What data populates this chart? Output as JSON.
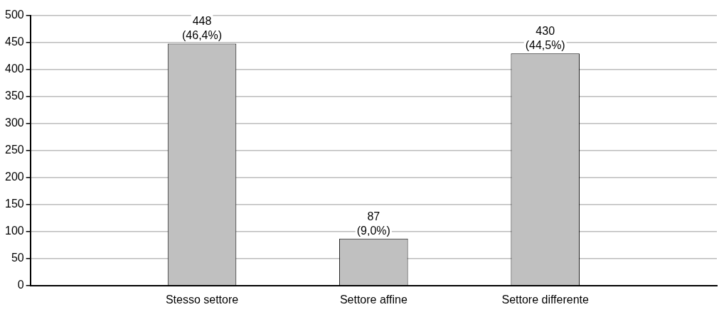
{
  "chart_data": {
    "type": "bar",
    "categories": [
      null,
      "Stesso settore",
      "Settore affine",
      "Settore differente",
      null
    ],
    "series": [
      {
        "color": "#c0c0c0",
        "values": [
          null,
          448,
          87,
          430,
          null
        ],
        "value_labels": [
          null,
          "448\n(46,4%)",
          "87\n(9,0%)",
          "430\n(44,5%)",
          null
        ]
      }
    ],
    "ylim": [
      0,
      500
    ],
    "yticks": [
      0,
      50,
      100,
      150,
      200,
      250,
      300,
      350,
      400,
      450,
      500
    ],
    "grid": "y",
    "legend": false
  }
}
